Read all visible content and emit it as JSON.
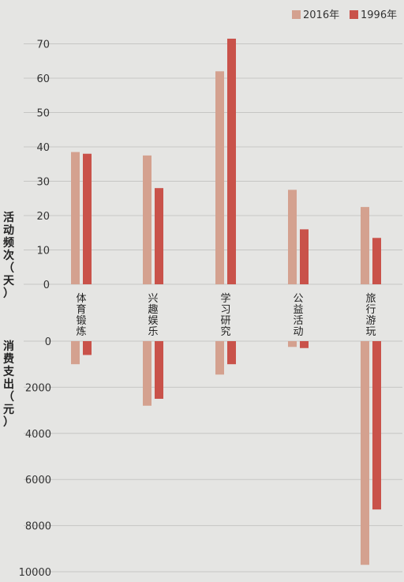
{
  "chart_data": [
    {
      "type": "bar",
      "ylabel": "活动频次（天）",
      "categories": [
        "体育锻炼",
        "兴趣娱乐",
        "学习研究",
        "公益活动",
        "旅行游玩"
      ],
      "series": [
        {
          "name": "2016年",
          "color": "#d4a18f",
          "values": [
            38.5,
            37.5,
            62,
            27.5,
            22.5
          ]
        },
        {
          "name": "1996年",
          "color": "#c9524a",
          "values": [
            38,
            28,
            71.5,
            16,
            13.5
          ]
        }
      ],
      "yticks": [
        "0",
        "10",
        "20",
        "30",
        "40",
        "50",
        "60",
        "70"
      ],
      "ylim": [
        0,
        75
      ],
      "grid": true,
      "legend": "top-right"
    },
    {
      "type": "bar",
      "ylabel": "消费支出（元）",
      "categories": [
        "体育锻炼",
        "兴趣娱乐",
        "学习研究",
        "公益活动",
        "旅行游玩"
      ],
      "series": [
        {
          "name": "2016年",
          "color": "#d4a18f",
          "values": [
            1000,
            2800,
            1450,
            250,
            9700
          ]
        },
        {
          "name": "1996年",
          "color": "#c9524a",
          "values": [
            600,
            2500,
            1000,
            300,
            7300
          ]
        }
      ],
      "yticks": [
        "0",
        "2000",
        "4000",
        "6000",
        "8000",
        "10000"
      ],
      "ylim": [
        0,
        10000
      ],
      "inverted": true,
      "grid": true
    }
  ]
}
